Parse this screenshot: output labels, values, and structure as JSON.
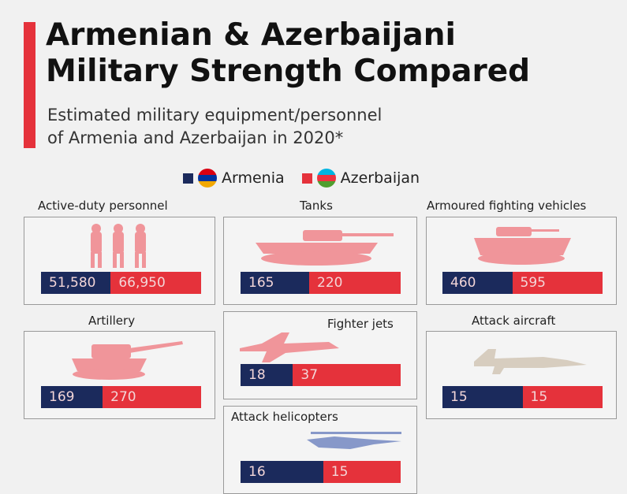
{
  "header": {
    "title": [
      "Armenian & Azerbaijani",
      "Military Strength Compared"
    ],
    "subtitle": [
      "Estimated military equipment/personnel",
      "of Armenia and Azerbaijan in 2020*"
    ]
  },
  "legend": [
    {
      "name": "Armenia",
      "color": "#1b2a5c"
    },
    {
      "name": "Azerbaijan",
      "color": "#e5323b"
    }
  ],
  "chart_data": [
    {
      "type": "split-bar",
      "title": "Active-duty personnel",
      "values": [
        51580,
        66950
      ],
      "value_labels": [
        "51,580",
        "66,950"
      ]
    },
    {
      "type": "split-bar",
      "title": "Tanks",
      "values": [
        165,
        220
      ]
    },
    {
      "type": "split-bar",
      "title": "Armoured fighting vehicles",
      "values": [
        460,
        595
      ]
    },
    {
      "type": "split-bar",
      "title": "Artillery",
      "values": [
        169,
        270
      ]
    },
    {
      "type": "split-bar",
      "title": "Fighter jets",
      "values": [
        18,
        37
      ]
    },
    {
      "type": "split-bar",
      "title": "Attack aircraft",
      "values": [
        15,
        15
      ]
    },
    {
      "type": "split-bar",
      "title": "Attack helicopters",
      "values": [
        16,
        15
      ]
    }
  ]
}
